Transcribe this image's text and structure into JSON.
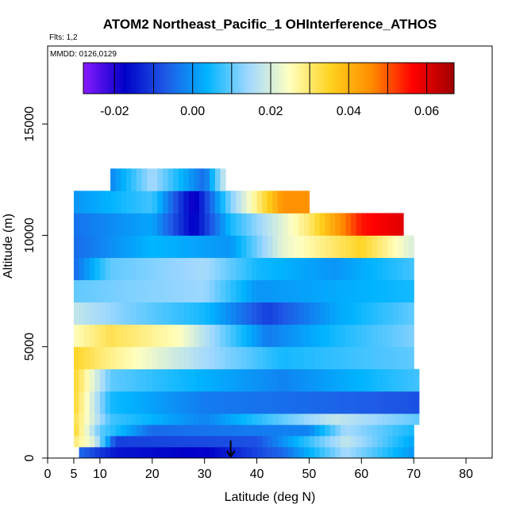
{
  "chart_data": {
    "type": "heatmap",
    "title": "ATOM2 Northeast_Pacific_1 OHInterference_ATHOS",
    "annotations": [
      "Flts: 1,2",
      "MMDD: 0126,0129"
    ],
    "xlabel": "Latitude (deg N)",
    "ylabel": "Altitude (m)",
    "xlim": [
      0,
      85
    ],
    "ylim": [
      0,
      18500
    ],
    "x_ticks": [
      0,
      5,
      10,
      20,
      30,
      40,
      50,
      60,
      70,
      80
    ],
    "y_ticks": [
      0,
      5000,
      10000,
      15000
    ],
    "colorbar": {
      "range": [
        -0.028,
        0.067
      ],
      "tick_values": [
        -0.02,
        0.0,
        0.02,
        0.04,
        0.06
      ],
      "tick_labels": [
        "-0.02",
        "0.00",
        "0.02",
        "0.04",
        "0.06"
      ],
      "bin_edges": [
        -0.02,
        -0.01,
        0.0,
        0.01,
        0.02,
        0.03,
        0.04,
        0.05,
        0.06
      ],
      "colors": [
        "#8a1aff",
        "#0000c8",
        "#1e5ae6",
        "#00b4ff",
        "#a0d8ff",
        "#ffffc0",
        "#ffd21e",
        "#ff8c00",
        "#ff0000",
        "#a00000"
      ]
    },
    "arrow_latitude": 35,
    "profile_layers": [
      {
        "alt": [
          0,
          500
        ],
        "values": [
          [
            6,
            -0.005
          ],
          [
            13,
            -0.015
          ],
          [
            30,
            -0.018
          ],
          [
            45,
            -0.005
          ],
          [
            57,
            0.015
          ],
          [
            70,
            0.0
          ]
        ]
      },
      {
        "alt": [
          500,
          1000
        ],
        "values": [
          [
            5,
            0.03
          ],
          [
            9,
            0.02
          ],
          [
            13,
            -0.01
          ],
          [
            40,
            -0.008
          ],
          [
            57,
            0.018
          ],
          [
            70,
            0.002
          ]
        ]
      },
      {
        "alt": [
          1000,
          1500
        ],
        "values": [
          [
            5,
            0.035
          ],
          [
            10,
            0.01
          ],
          [
            20,
            -0.005
          ],
          [
            50,
            -0.002
          ],
          [
            57,
            0.015
          ],
          [
            70,
            0.005
          ]
        ]
      },
      {
        "alt": [
          1500,
          2000
        ],
        "values": [
          [
            5,
            0.033
          ],
          [
            12,
            0.008
          ],
          [
            30,
            -0.002
          ],
          [
            55,
            0.018
          ],
          [
            71,
            0.01
          ]
        ]
      },
      {
        "alt": [
          2000,
          3000
        ],
        "values": [
          [
            5,
            0.035
          ],
          [
            12,
            0.005
          ],
          [
            30,
            -0.003
          ],
          [
            50,
            -0.005
          ],
          [
            71,
            -0.008
          ]
        ]
      },
      {
        "alt": [
          3000,
          4000
        ],
        "values": [
          [
            5,
            0.035
          ],
          [
            12,
            0.01
          ],
          [
            25,
            0.005
          ],
          [
            45,
            -0.002
          ],
          [
            71,
            0.008
          ]
        ]
      },
      {
        "alt": [
          4000,
          5000
        ],
        "values": [
          [
            5,
            0.035
          ],
          [
            10,
            0.03
          ],
          [
            30,
            0.015
          ],
          [
            45,
            0.005
          ],
          [
            70,
            0.01
          ]
        ]
      },
      {
        "alt": [
          5000,
          6000
        ],
        "values": [
          [
            5,
            0.025
          ],
          [
            12,
            0.032
          ],
          [
            25,
            0.025
          ],
          [
            42,
            -0.003
          ],
          [
            55,
            0.005
          ],
          [
            70,
            0.012
          ]
        ]
      },
      {
        "alt": [
          6000,
          7000
        ],
        "values": [
          [
            5,
            0.018
          ],
          [
            15,
            0.012
          ],
          [
            30,
            0.005
          ],
          [
            42,
            -0.01
          ],
          [
            55,
            0.002
          ],
          [
            70,
            0.01
          ]
        ]
      },
      {
        "alt": [
          7000,
          8000
        ],
        "values": [
          [
            5,
            0.01
          ],
          [
            15,
            0.012
          ],
          [
            30,
            0.014
          ],
          [
            40,
            0.0
          ],
          [
            70,
            0.005
          ]
        ]
      },
      {
        "alt": [
          8000,
          9000
        ],
        "values": [
          [
            5,
            -0.005
          ],
          [
            12,
            0.01
          ],
          [
            30,
            0.015
          ],
          [
            40,
            0.005
          ],
          [
            55,
            0.0
          ],
          [
            70,
            0.008
          ]
        ]
      },
      {
        "alt": [
          9000,
          10000
        ],
        "values": [
          [
            5,
            -0.005
          ],
          [
            20,
            0.004
          ],
          [
            35,
            0.0
          ],
          [
            45,
            0.022
          ],
          [
            60,
            0.035
          ],
          [
            70,
            0.02
          ]
        ]
      },
      {
        "alt": [
          10000,
          11000
        ],
        "values": [
          [
            5,
            -0.004
          ],
          [
            20,
            0.002
          ],
          [
            28,
            -0.018
          ],
          [
            35,
            0.005
          ],
          [
            50,
            0.03
          ],
          [
            60,
            0.055
          ],
          [
            68,
            0.06
          ]
        ]
      },
      {
        "alt": [
          11000,
          12000
        ],
        "values": [
          [
            5,
            0.0
          ],
          [
            20,
            0.008
          ],
          [
            28,
            -0.02
          ],
          [
            35,
            0.012
          ],
          [
            45,
            0.045
          ],
          [
            50,
            0.045
          ]
        ]
      },
      {
        "alt": [
          12000,
          13000
        ],
        "values": [
          [
            12,
            -0.002
          ],
          [
            20,
            0.015
          ],
          [
            30,
            -0.005
          ],
          [
            34,
            0.02
          ]
        ]
      }
    ]
  }
}
